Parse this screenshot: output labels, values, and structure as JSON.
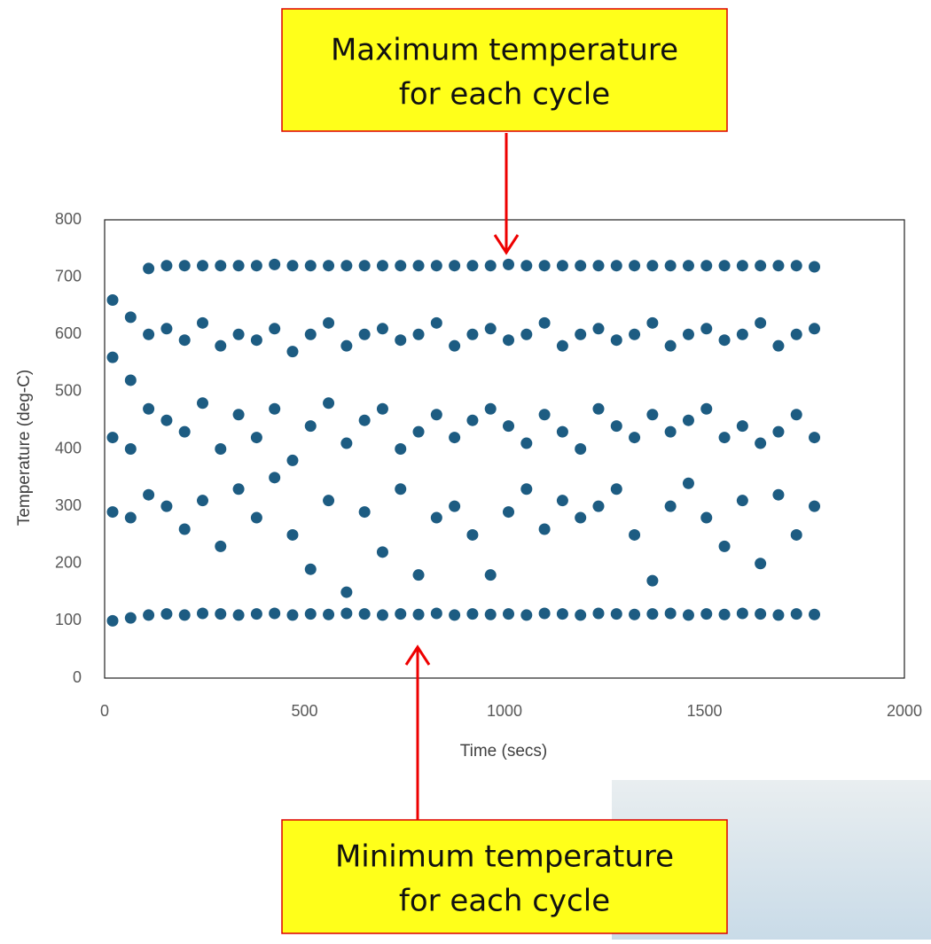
{
  "chart_data": {
    "type": "scatter",
    "x_label": "Time (secs)",
    "y_label": "Temperature (deg-C)",
    "color": "#1d5c82",
    "xlim": [
      0,
      2000
    ],
    "xticks": [
      0,
      500,
      1000,
      1500,
      2000
    ],
    "ylim": [
      0,
      800
    ],
    "yticks": [
      0,
      100,
      200,
      300,
      400,
      500,
      600,
      700,
      800
    ],
    "grid": false,
    "x": [
      20,
      20,
      20,
      20,
      20,
      65,
      65,
      65,
      65,
      65,
      110,
      110,
      110,
      110,
      110,
      155,
      155,
      155,
      155,
      155,
      200,
      200,
      200,
      200,
      200,
      245,
      245,
      245,
      245,
      245,
      290,
      290,
      290,
      290,
      290,
      335,
      335,
      335,
      335,
      335,
      380,
      380,
      380,
      380,
      380,
      425,
      425,
      425,
      425,
      425,
      470,
      470,
      470,
      470,
      470,
      515,
      515,
      515,
      515,
      515,
      560,
      560,
      560,
      560,
      560,
      605,
      605,
      605,
      605,
      605,
      650,
      650,
      650,
      650,
      650,
      695,
      695,
      695,
      695,
      695,
      740,
      740,
      740,
      740,
      740,
      785,
      785,
      785,
      785,
      785,
      830,
      830,
      830,
      830,
      830,
      875,
      875,
      875,
      875,
      875,
      920,
      920,
      920,
      920,
      920,
      965,
      965,
      965,
      965,
      965,
      1010,
      1010,
      1010,
      1010,
      1010,
      1055,
      1055,
      1055,
      1055,
      1055,
      1100,
      1100,
      1100,
      1100,
      1100,
      1145,
      1145,
      1145,
      1145,
      1145,
      1190,
      1190,
      1190,
      1190,
      1190,
      1235,
      1235,
      1235,
      1235,
      1235,
      1280,
      1280,
      1280,
      1280,
      1280,
      1325,
      1325,
      1325,
      1325,
      1325,
      1370,
      1370,
      1370,
      1370,
      1370,
      1415,
      1415,
      1415,
      1415,
      1415,
      1460,
      1460,
      1460,
      1460,
      1460,
      1505,
      1505,
      1505,
      1505,
      1505,
      1550,
      1550,
      1550,
      1550,
      1550,
      1595,
      1595,
      1595,
      1595,
      1595,
      1640,
      1640,
      1640,
      1640,
      1640,
      1685,
      1685,
      1685,
      1685,
      1685,
      1730,
      1730,
      1730,
      1730,
      1730,
      1775,
      1775,
      1775,
      1775,
      1775
    ],
    "values": [
      660,
      560,
      420,
      290,
      100,
      630,
      520,
      400,
      280,
      105,
      715,
      600,
      470,
      320,
      110,
      720,
      610,
      450,
      300,
      112,
      720,
      590,
      430,
      260,
      110,
      720,
      620,
      480,
      310,
      113,
      720,
      580,
      400,
      230,
      112,
      720,
      600,
      460,
      330,
      110,
      720,
      590,
      420,
      280,
      112,
      722,
      610,
      470,
      350,
      113,
      720,
      570,
      380,
      250,
      110,
      720,
      600,
      440,
      190,
      112,
      720,
      620,
      480,
      310,
      111,
      720,
      580,
      410,
      150,
      113,
      720,
      600,
      450,
      290,
      112,
      720,
      610,
      470,
      220,
      110,
      720,
      590,
      400,
      330,
      112,
      720,
      600,
      430,
      180,
      111,
      720,
      620,
      460,
      280,
      113,
      720,
      580,
      420,
      300,
      110,
      720,
      600,
      450,
      250,
      112,
      720,
      610,
      470,
      180,
      111,
      722,
      590,
      440,
      290,
      112,
      720,
      600,
      410,
      330,
      110,
      720,
      620,
      460,
      260,
      113,
      720,
      580,
      430,
      310,
      112,
      720,
      600,
      400,
      280,
      110,
      720,
      610,
      470,
      300,
      113,
      720,
      590,
      440,
      330,
      112,
      720,
      600,
      420,
      250,
      111,
      720,
      620,
      460,
      170,
      112,
      720,
      580,
      430,
      300,
      113,
      720,
      600,
      450,
      340,
      110,
      720,
      610,
      470,
      280,
      112,
      720,
      590,
      420,
      230,
      111,
      720,
      600,
      440,
      310,
      113,
      720,
      620,
      410,
      200,
      112,
      720,
      580,
      430,
      320,
      110,
      720,
      600,
      460,
      250,
      112,
      718,
      610,
      420,
      300,
      111
    ]
  },
  "annotations": [
    {
      "lines": [
        "Maximum temperature",
        "for each cycle"
      ]
    },
    {
      "lines": [
        "Minimum temperature",
        "for each cycle"
      ]
    }
  ]
}
